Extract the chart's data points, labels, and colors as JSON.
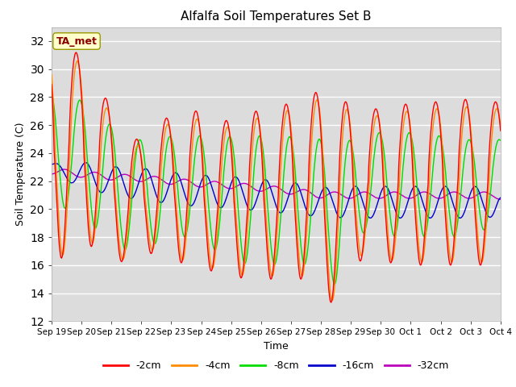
{
  "title": "Alfalfa Soil Temperatures Set B",
  "xlabel": "Time",
  "ylabel": "Soil Temperature (C)",
  "ylim": [
    12,
    33
  ],
  "yticks": [
    12,
    14,
    16,
    18,
    20,
    22,
    24,
    26,
    28,
    30,
    32
  ],
  "annotation": "TA_met",
  "annotation_color": "#8B0000",
  "annotation_bg": "#FFFFCC",
  "bg_color": "#DCDCDC",
  "series_colors": {
    "-2cm": "#FF0000",
    "-4cm": "#FF8C00",
    "-8cm": "#00DD00",
    "-16cm": "#0000CC",
    "-32cm": "#BB00BB"
  },
  "x_tick_labels": [
    "Sep 19",
    "Sep 20",
    "Sep 21",
    "Sep 22",
    "Sep 23",
    "Sep 24",
    "Sep 25",
    "Sep 26",
    "Sep 27",
    "Sep 28",
    "Sep 29",
    "Sep 30",
    "Oct 1",
    "Oct 2",
    "Oct 3",
    "Oct 4"
  ],
  "n_points": 720
}
